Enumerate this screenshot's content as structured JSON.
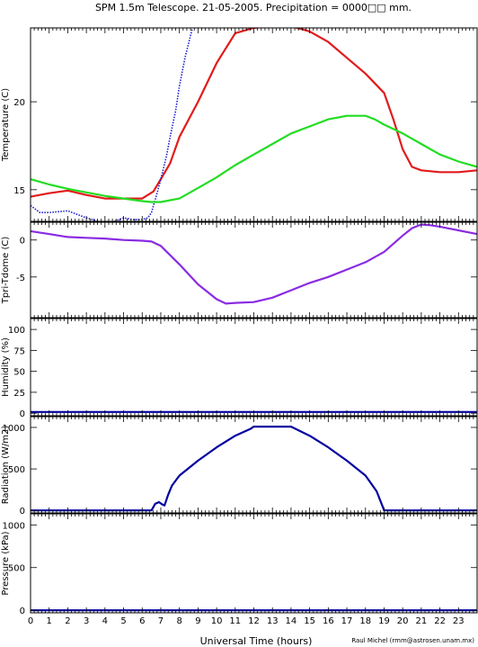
{
  "title": "SPM 1.5m Telescope. 21-05-2005. Precipitation = 0000□□ mm.",
  "xlabel": "Universal Time (hours)",
  "credit": "Raul Michel (rmm@astrosen.unam.mx)",
  "colors": {
    "red": "#e11b1b",
    "blue": "#1a1acc",
    "green": "#22dd22",
    "purple": "#8a2be2",
    "navy": "#0000a0"
  },
  "chart_data": [
    {
      "type": "line",
      "ylabel": "Temperature (C)",
      "xlim": [
        0,
        24
      ],
      "ylim": [
        13.2,
        24.2
      ],
      "yticks": [
        15,
        20
      ],
      "xticks": [
        0,
        1,
        2,
        3,
        4,
        5,
        6,
        7,
        8,
        9,
        10,
        11,
        12,
        13,
        14,
        15,
        16,
        17,
        18,
        19,
        20,
        21,
        22,
        23
      ],
      "series": [
        {
          "color": "red",
          "x": [
            0,
            1,
            2,
            3,
            4,
            5,
            6,
            6.6,
            7,
            7.5,
            8,
            9,
            10,
            11,
            12,
            13,
            14,
            15,
            16,
            17,
            18,
            19,
            19.5,
            20,
            20.5,
            21,
            22,
            23,
            24
          ],
          "y": [
            14.6,
            14.8,
            14.95,
            14.7,
            14.5,
            14.5,
            14.5,
            14.9,
            15.6,
            16.5,
            18.0,
            20.0,
            22.2,
            23.9,
            24.2,
            24.3,
            24.3,
            24.0,
            23.4,
            22.5,
            21.6,
            20.5,
            19.0,
            17.3,
            16.3,
            16.1,
            16.0,
            16.0,
            16.1
          ]
        },
        {
          "color": "blue",
          "x": [
            0,
            0.5,
            1,
            2,
            3,
            4,
            4.5,
            5,
            5.5,
            6,
            6.3,
            6.5,
            6.8,
            7,
            7.3,
            7.5,
            7.8,
            8,
            8.3,
            8.7
          ],
          "y": [
            14.1,
            13.7,
            13.7,
            13.8,
            13.4,
            13.1,
            13.2,
            13.4,
            13.3,
            13.3,
            13.4,
            13.7,
            14.8,
            15.6,
            16.9,
            18.0,
            19.5,
            20.9,
            22.5,
            24.2
          ]
        },
        {
          "color": "green",
          "x": [
            0,
            1,
            2,
            3,
            4,
            5,
            6,
            6.5,
            7,
            8,
            9,
            10,
            11,
            12,
            13,
            14,
            15,
            16,
            17,
            17.5,
            18,
            18.5,
            19,
            20,
            21,
            22,
            23,
            24
          ],
          "y": [
            15.6,
            15.3,
            15.05,
            14.85,
            14.65,
            14.5,
            14.35,
            14.3,
            14.3,
            14.5,
            15.1,
            15.7,
            16.4,
            17.0,
            17.6,
            18.2,
            18.6,
            19.0,
            19.2,
            19.2,
            19.2,
            19.0,
            18.7,
            18.2,
            17.6,
            17.0,
            16.6,
            16.3
          ]
        }
      ]
    },
    {
      "type": "line",
      "ylabel": "Tpri-Tdome (C)",
      "xlim": [
        0,
        24
      ],
      "ylim": [
        -10.5,
        2.4
      ],
      "yticks": [
        0,
        -5
      ],
      "series": [
        {
          "color": "purple",
          "x": [
            0,
            1,
            2,
            3,
            4,
            5,
            6,
            6.5,
            7,
            8,
            9,
            10,
            10.5,
            11,
            12,
            13,
            14,
            15,
            16,
            17,
            18,
            19,
            20,
            20.5,
            21,
            21.5,
            22,
            23,
            24
          ],
          "y": [
            1.2,
            0.8,
            0.4,
            0.3,
            0.2,
            0.0,
            -0.1,
            -0.2,
            -0.8,
            -3.3,
            -6.0,
            -8.0,
            -8.6,
            -8.5,
            -8.4,
            -7.8,
            -6.8,
            -5.8,
            -5.0,
            -4.0,
            -3.0,
            -1.6,
            0.6,
            1.6,
            2.1,
            2.0,
            1.8,
            1.3,
            0.8
          ]
        }
      ]
    },
    {
      "type": "line",
      "ylabel": "Humidity (%)",
      "xlim": [
        0,
        24
      ],
      "ylim": [
        -3,
        113
      ],
      "yticks": [
        0,
        25,
        50,
        75,
        100
      ],
      "series": [
        {
          "color": "navy",
          "x": [
            0,
            24
          ],
          "y": [
            1.5,
            1.5
          ]
        }
      ]
    },
    {
      "type": "line",
      "ylabel": "Radiation (W/m2)",
      "xlim": [
        0,
        24
      ],
      "ylim": [
        -30,
        1130
      ],
      "yticks": [
        0,
        500,
        1000
      ],
      "series": [
        {
          "color": "navy",
          "x": [
            0,
            6.5,
            6.7,
            6.9,
            7.1,
            7.2,
            7.4,
            7.6,
            8,
            9,
            10,
            11,
            11.8,
            12,
            12.5,
            13,
            13.5,
            14,
            15,
            16,
            17,
            18,
            18.6,
            18.9,
            19,
            24
          ],
          "y": [
            0,
            0,
            80,
            100,
            70,
            60,
            190,
            300,
            420,
            600,
            760,
            900,
            980,
            1010,
            1010,
            1010,
            1010,
            1010,
            900,
            760,
            600,
            420,
            230,
            60,
            0,
            0
          ]
        }
      ]
    },
    {
      "type": "line",
      "ylabel": "Pressure (kPa)",
      "xlim": [
        0,
        24
      ],
      "ylim": [
        -30,
        1130
      ],
      "yticks": [
        0,
        500,
        1000
      ],
      "series": [
        {
          "color": "navy",
          "x": [
            0,
            24
          ],
          "y": [
            0,
            0
          ]
        }
      ]
    }
  ]
}
